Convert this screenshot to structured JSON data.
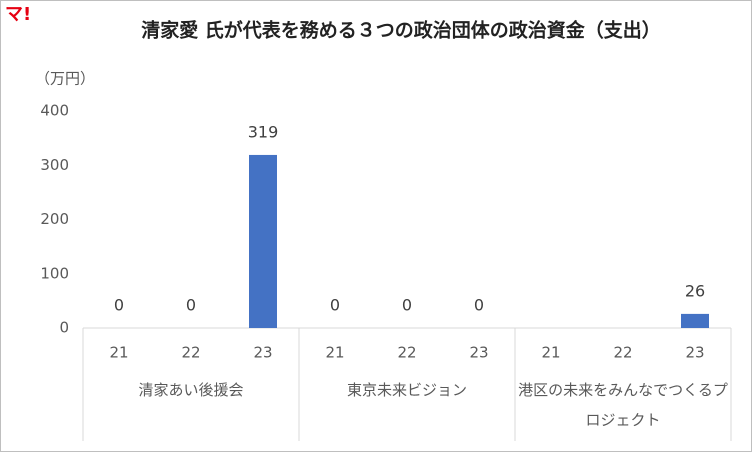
{
  "logo": "マ!",
  "chart_data": {
    "type": "bar",
    "title": "清家愛 氏が代表を務める３つの政治団体の政治資金（支出）",
    "y_label": "（万円）",
    "groups": [
      "清家あい後援会",
      "東京未来ビジョン",
      "港区の未来をみんなでつくるプロジェクト"
    ],
    "categories": [
      "21",
      "22",
      "23",
      "21",
      "22",
      "23",
      "21",
      "22",
      "23"
    ],
    "values": [
      0,
      0,
      319,
      0,
      0,
      0,
      null,
      null,
      26
    ],
    "color": "#4472c4",
    "ylim": [
      0,
      400
    ],
    "yticks": [
      0,
      100,
      200,
      300,
      400
    ],
    "grid": false
  }
}
